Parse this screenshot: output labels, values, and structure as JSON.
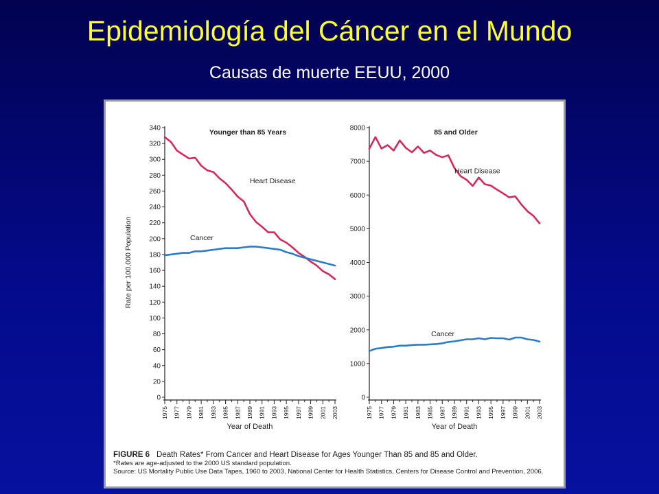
{
  "slide": {
    "title": "Epidemiología del Cáncer en el Mundo",
    "subtitle": "Causas de muerte EEUU, 2000"
  },
  "figure": {
    "label": "FIGURE 6",
    "caption": "Death Rates* From Cancer and Heart Disease for Ages Younger Than 85 and 85 and Older.",
    "footnote": "*Rates are age-adjusted to the 2000 US standard population.",
    "source": "Source: US Mortality Public Use Data Tapes, 1960 to 2003, National Center for Health Statistics, Centers for Disease Control and Prevention, 2006."
  },
  "colors": {
    "heart_disease": "#d22a5a",
    "cancer": "#2a7cc8"
  },
  "chart_data": [
    {
      "type": "line",
      "title": "Younger than 85 Years",
      "ylabel": "Rate per 100,000 Population",
      "xlabel": "Year of Death",
      "ylim": [
        0,
        340
      ],
      "yticks": [
        0,
        20,
        40,
        60,
        80,
        100,
        120,
        140,
        160,
        180,
        200,
        220,
        240,
        260,
        280,
        300,
        320,
        340
      ],
      "xlim": [
        1975,
        2003
      ],
      "xtick_labels": [
        "1975",
        "1977",
        "1979",
        "1981",
        "1983",
        "1985",
        "1987",
        "1989",
        "1991",
        "1993",
        "1995",
        "1997",
        "1999",
        "2001",
        "2003"
      ],
      "x": [
        1975,
        1976,
        1977,
        1978,
        1979,
        1980,
        1981,
        1982,
        1983,
        1984,
        1985,
        1986,
        1987,
        1988,
        1989,
        1990,
        1991,
        1992,
        1993,
        1994,
        1995,
        1996,
        1997,
        1998,
        1999,
        2000,
        2001,
        2002,
        2003
      ],
      "series": [
        {
          "name": "Heart Disease",
          "values": [
            328,
            322,
            311,
            306,
            301,
            302,
            292,
            286,
            284,
            276,
            270,
            262,
            253,
            247,
            231,
            221,
            215,
            208,
            208,
            199,
            195,
            189,
            182,
            177,
            171,
            166,
            159,
            155,
            149
          ]
        },
        {
          "name": "Cancer",
          "values": [
            179,
            180,
            181,
            182,
            182,
            184,
            184,
            185,
            186,
            187,
            188,
            188,
            188,
            189,
            190,
            190,
            189,
            188,
            187,
            186,
            183,
            181,
            178,
            176,
            174,
            172,
            170,
            168,
            166
          ]
        }
      ]
    },
    {
      "type": "line",
      "title": "85 and Older",
      "xlabel": "Year of Death",
      "ylim": [
        0,
        8000
      ],
      "yticks": [
        0,
        1000,
        2000,
        3000,
        4000,
        5000,
        6000,
        7000,
        8000
      ],
      "xlim": [
        1975,
        2003
      ],
      "xtick_labels": [
        "1975",
        "1977",
        "1979",
        "1981",
        "1983",
        "1985",
        "1987",
        "1989",
        "1991",
        "1993",
        "1995",
        "1997",
        "1999",
        "2001",
        "2003"
      ],
      "x": [
        1975,
        1976,
        1977,
        1978,
        1979,
        1980,
        1981,
        1982,
        1983,
        1984,
        1985,
        1986,
        1987,
        1988,
        1989,
        1990,
        1991,
        1992,
        1993,
        1994,
        1995,
        1996,
        1997,
        1998,
        1999,
        2000,
        2001,
        2002,
        2003
      ],
      "series": [
        {
          "name": "Heart Disease",
          "values": [
            7380,
            7720,
            7380,
            7480,
            7320,
            7620,
            7400,
            7270,
            7440,
            7250,
            7320,
            7190,
            7120,
            7180,
            6800,
            6560,
            6450,
            6270,
            6520,
            6320,
            6280,
            6160,
            6050,
            5930,
            5960,
            5720,
            5520,
            5380,
            5160
          ]
        },
        {
          "name": "Cancer",
          "values": [
            1370,
            1440,
            1460,
            1490,
            1500,
            1530,
            1530,
            1550,
            1560,
            1560,
            1570,
            1580,
            1600,
            1640,
            1660,
            1690,
            1720,
            1720,
            1750,
            1720,
            1760,
            1750,
            1750,
            1710,
            1770,
            1770,
            1720,
            1700,
            1650
          ]
        }
      ]
    }
  ]
}
